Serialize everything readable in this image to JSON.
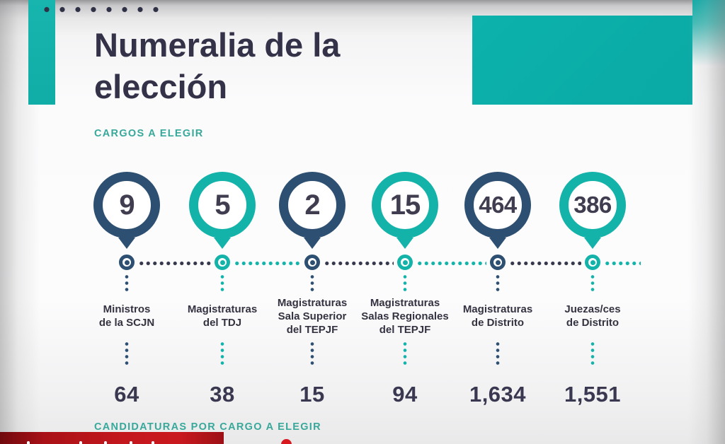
{
  "title": {
    "line1": "Numeralia de la",
    "line2": "elección"
  },
  "sections": {
    "cargos": "CARGOS A ELEGIR",
    "candidaturas": "CANDIDATURAS POR CARGO A ELEGIR"
  },
  "columns": [
    {
      "cargo_count": "9",
      "label_lines": [
        "Ministros",
        "de la SCJN"
      ],
      "candidaturas": "64",
      "accent": "dark-navy"
    },
    {
      "cargo_count": "5",
      "label_lines": [
        "Magistraturas",
        "del TDJ"
      ],
      "candidaturas": "38",
      "accent": "teal"
    },
    {
      "cargo_count": "2",
      "label_lines": [
        "Magistraturas",
        "Sala Superior",
        "del TEPJF"
      ],
      "candidaturas": "15",
      "accent": "dark-navy"
    },
    {
      "cargo_count": "15",
      "label_lines": [
        "Magistraturas",
        "Salas Regionales",
        "del TEPJF"
      ],
      "candidaturas": "94",
      "accent": "teal"
    },
    {
      "cargo_count": "464",
      "label_lines": [
        "Magistraturas",
        "de Distrito"
      ],
      "candidaturas": "1,634",
      "accent": "dark-navy"
    },
    {
      "cargo_count": "386",
      "label_lines": [
        "Juezas/ces",
        "de Distrito"
      ],
      "candidaturas": "1,551",
      "accent": "teal"
    }
  ],
  "colors": {
    "teal": "#14b3a9",
    "dark_navy": "#2d4f71",
    "ink_text": "#343248",
    "section_teal": "#38a89b",
    "banner_red": "#c9191f"
  },
  "chart_data": {
    "type": "table",
    "title": "Numeralia de la elección",
    "categories": [
      "Ministros de la SCJN",
      "Magistraturas del TDJ",
      "Magistraturas Sala Superior del TEPJF",
      "Magistraturas Salas Regionales del TEPJF",
      "Magistraturas de Distrito",
      "Juezas/ces de Distrito"
    ],
    "series": [
      {
        "name": "Cargos a elegir",
        "values": [
          9,
          5,
          2,
          15,
          464,
          386
        ]
      },
      {
        "name": "Candidaturas por cargo a elegir",
        "values": [
          64,
          38,
          15,
          94,
          1634,
          1551
        ]
      }
    ],
    "layout": "horizontal timeline of map-pin markers with dotted connectors"
  }
}
